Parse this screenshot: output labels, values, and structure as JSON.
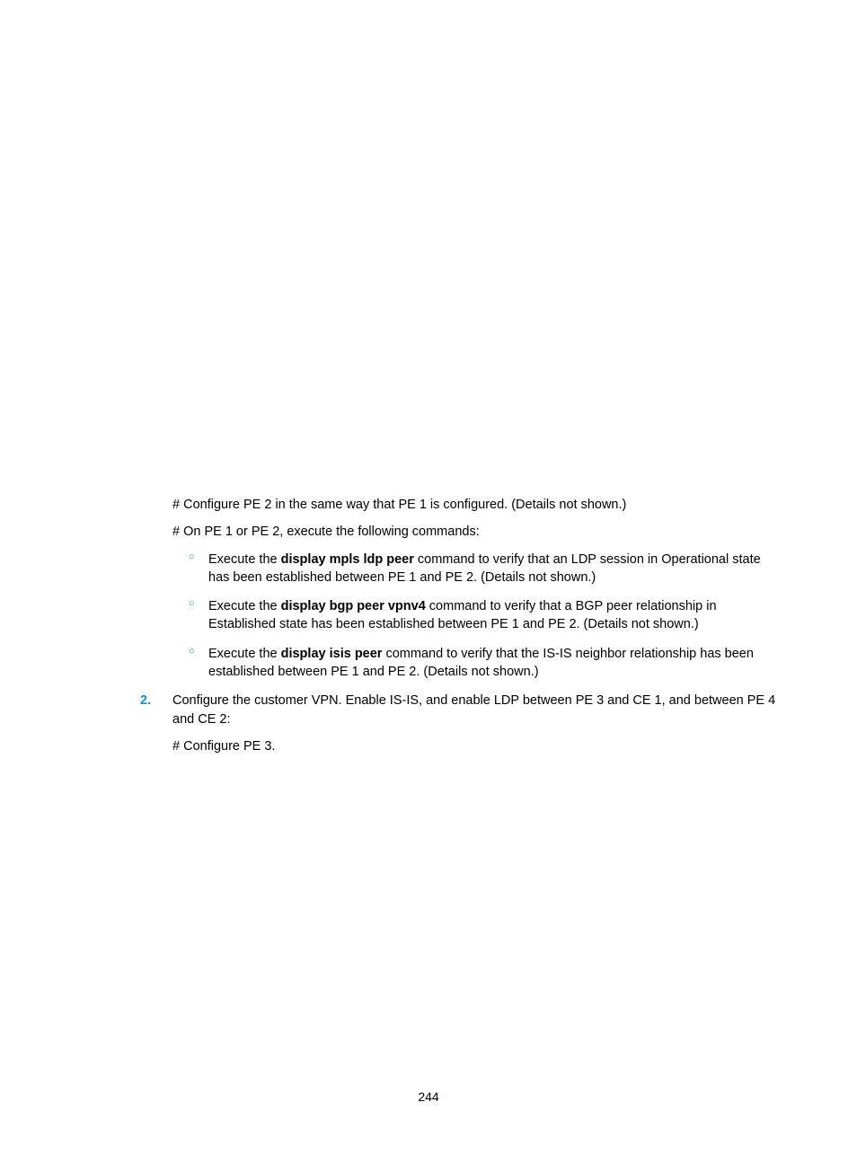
{
  "colors": {
    "accent": "#0096d6",
    "text": "#000000",
    "background": "#ffffff"
  },
  "typography": {
    "body_fontsize_pt": 11,
    "font_family": "Arial"
  },
  "para1": "# Configure PE 2 in the same way that PE 1 is configured. (Details not shown.)",
  "para2": "# On PE 1 or PE 2, execute the following commands:",
  "bullets": [
    {
      "pre": "Execute the ",
      "cmd": "display mpls ldp peer",
      "post": " command to verify that an LDP session in Operational state has been established between PE 1 and PE 2. (Details not shown.)"
    },
    {
      "pre": "Execute the ",
      "cmd": "display bgp peer vpnv4",
      "post": " command to verify that a BGP peer relationship in Established state has been established between PE 1 and PE 2. (Details not shown.)"
    },
    {
      "pre": "Execute the ",
      "cmd": "display isis peer",
      "post": " command to verify that the IS-IS neighbor relationship has been established between PE 1 and PE 2. (Details not shown.)"
    }
  ],
  "num_step": {
    "label": "2.",
    "text": "Configure the customer VPN. Enable IS-IS, and enable LDP between PE 3 and CE 1, and between PE 4 and CE 2:"
  },
  "para3": "# Configure PE 3.",
  "page_number": "244"
}
